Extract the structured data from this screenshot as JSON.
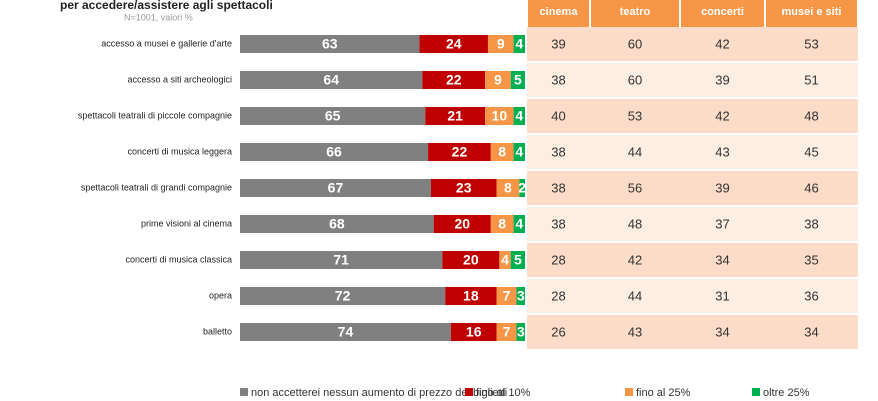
{
  "chart_data": {
    "type": "stacked-bar",
    "title": "per accedere/assistere agli spettacoli",
    "subtitle": "N=1001, valori %",
    "categories": [
      "accesso a musei e gallerie d'arte",
      "accesso a siti archeologici",
      "spettacoli teatrali di piccole compagnie",
      "concerti di musica leggera",
      "spettacoli teatrali di grandi compagnie",
      "prime visioni al cinema",
      "concerti di musica classica",
      "opera",
      "balletto"
    ],
    "xlim": [
      0,
      100
    ],
    "series": [
      {
        "name": "non accetterei nessun aumento di prezzo dei biglietti",
        "color": "#808080",
        "values": [
          63,
          64,
          65,
          66,
          67,
          68,
          71,
          72,
          74
        ]
      },
      {
        "name": "fino al 10%",
        "color": "#c00000",
        "values": [
          24,
          22,
          21,
          22,
          23,
          20,
          20,
          18,
          16
        ]
      },
      {
        "name": "fino al 25%",
        "color": "#f79646",
        "values": [
          9,
          9,
          10,
          8,
          8,
          8,
          4,
          7,
          7
        ]
      },
      {
        "name": "oltre 25%",
        "color": "#00b050",
        "values": [
          4,
          5,
          4,
          4,
          2,
          4,
          5,
          3,
          3
        ]
      }
    ],
    "table": {
      "columns": [
        "cinema",
        "teatro",
        "concerti",
        "musei e siti"
      ],
      "rows": [
        [
          39,
          60,
          42,
          53
        ],
        [
          38,
          60,
          39,
          51
        ],
        [
          40,
          53,
          42,
          48
        ],
        [
          38,
          44,
          43,
          45
        ],
        [
          38,
          56,
          39,
          46
        ],
        [
          38,
          48,
          37,
          38
        ],
        [
          28,
          42,
          34,
          35
        ],
        [
          28,
          44,
          31,
          36
        ],
        [
          26,
          43,
          34,
          34
        ]
      ]
    }
  }
}
